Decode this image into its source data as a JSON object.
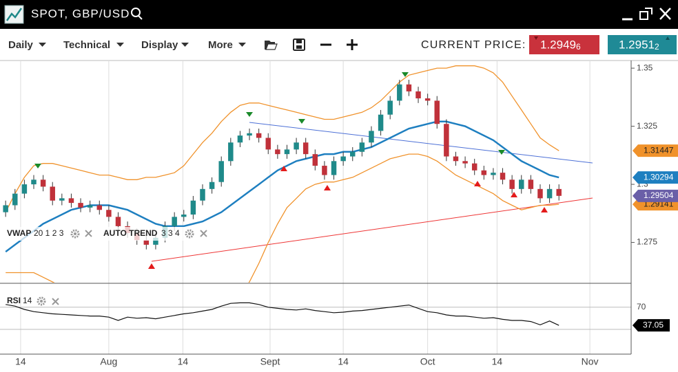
{
  "header": {
    "title": "SPOT, GBP/USD"
  },
  "toolbar": {
    "menus": [
      "Daily",
      "Technical",
      "Display",
      "More"
    ],
    "current_price_label": "CURRENT PRICE:",
    "bid": {
      "price": "1.2949",
      "pipette": "6"
    },
    "ask": {
      "price": "1.2951",
      "pipette": "2"
    }
  },
  "chart_data": [
    {
      "type": "candlestick",
      "up_color": "#1f8a8a",
      "down_color": "#c0313a",
      "open": [
        1.288,
        1.291,
        1.296,
        1.3,
        1.302,
        1.299,
        1.293,
        1.294,
        1.292,
        1.29,
        1.291,
        1.289,
        1.286,
        1.282,
        1.279,
        1.276,
        1.274,
        1.277,
        1.282,
        1.286,
        1.287,
        1.293,
        1.298,
        1.301,
        1.31,
        1.318,
        1.321,
        1.322,
        1.32,
        1.315,
        1.313,
        1.315,
        1.318,
        1.313,
        1.308,
        1.304,
        1.31,
        1.312,
        1.314,
        1.318,
        1.323,
        1.33,
        1.336,
        1.343,
        1.34,
        1.337,
        1.336,
        1.326,
        1.312,
        1.31,
        1.309,
        1.306,
        1.304,
        1.305,
        1.302,
        1.298,
        1.302,
        1.298,
        1.294,
        1.298
      ],
      "high": [
        1.293,
        1.298,
        1.302,
        1.304,
        1.304,
        1.301,
        1.296,
        1.296,
        1.294,
        1.293,
        1.293,
        1.291,
        1.288,
        1.284,
        1.281,
        1.278,
        1.279,
        1.284,
        1.288,
        1.289,
        1.295,
        1.3,
        1.303,
        1.312,
        1.32,
        1.323,
        1.324,
        1.324,
        1.322,
        1.317,
        1.317,
        1.32,
        1.32,
        1.315,
        1.31,
        1.312,
        1.314,
        1.316,
        1.32,
        1.325,
        1.332,
        1.338,
        1.345,
        1.345,
        1.342,
        1.339,
        1.338,
        1.328,
        1.314,
        1.312,
        1.311,
        1.308,
        1.307,
        1.307,
        1.304,
        1.304,
        1.304,
        1.3,
        1.3,
        1.3
      ],
      "low": [
        1.286,
        1.289,
        1.294,
        1.298,
        1.297,
        1.291,
        1.291,
        1.29,
        1.288,
        1.288,
        1.287,
        1.284,
        1.28,
        1.277,
        1.274,
        1.272,
        1.272,
        1.275,
        1.28,
        1.284,
        1.285,
        1.291,
        1.296,
        1.299,
        1.308,
        1.316,
        1.319,
        1.318,
        1.313,
        1.311,
        1.311,
        1.313,
        1.311,
        1.306,
        1.302,
        1.302,
        1.308,
        1.31,
        1.312,
        1.316,
        1.321,
        1.328,
        1.334,
        1.338,
        1.335,
        1.334,
        1.324,
        1.31,
        1.308,
        1.307,
        1.304,
        1.302,
        1.302,
        1.3,
        1.296,
        1.296,
        1.296,
        1.292,
        1.292,
        1.29304
      ],
      "close": [
        1.291,
        1.296,
        1.3,
        1.302,
        1.299,
        1.293,
        1.294,
        1.292,
        1.29,
        1.291,
        1.289,
        1.286,
        1.282,
        1.279,
        1.276,
        1.274,
        1.277,
        1.282,
        1.286,
        1.287,
        1.293,
        1.298,
        1.301,
        1.31,
        1.318,
        1.321,
        1.322,
        1.32,
        1.315,
        1.313,
        1.315,
        1.318,
        1.313,
        1.308,
        1.304,
        1.31,
        1.312,
        1.314,
        1.318,
        1.323,
        1.33,
        1.336,
        1.343,
        1.34,
        1.337,
        1.336,
        1.326,
        1.312,
        1.31,
        1.309,
        1.306,
        1.304,
        1.305,
        1.302,
        1.298,
        1.302,
        1.298,
        1.294,
        1.298,
        1.29504
      ],
      "last_color": "#6a5fa8",
      "overlays": [
        {
          "color": "#1e7fc0",
          "values": [
            1.271,
            1.274,
            1.277,
            1.28,
            1.283,
            1.285,
            1.287,
            1.289,
            1.29,
            1.291,
            1.291,
            1.291,
            1.29,
            1.289,
            1.287,
            1.285,
            1.283,
            1.282,
            1.282,
            1.282,
            1.283,
            1.284,
            1.286,
            1.288,
            1.291,
            1.294,
            1.297,
            1.3,
            1.303,
            1.306,
            1.308,
            1.31,
            1.311,
            1.312,
            1.313,
            1.313,
            1.314,
            1.314,
            1.315,
            1.316,
            1.318,
            1.32,
            1.322,
            1.324,
            1.325,
            1.326,
            1.327,
            1.327,
            1.326,
            1.325,
            1.323,
            1.321,
            1.319,
            1.316,
            1.313,
            1.31,
            1.308,
            1.306,
            1.304,
            1.30294
          ]
        },
        {
          "color": "#f0922b",
          "values": [
            1.288,
            1.296,
            1.303,
            1.308,
            1.309,
            1.309,
            1.308,
            1.307,
            1.306,
            1.305,
            1.304,
            1.304,
            1.303,
            1.302,
            1.302,
            1.303,
            1.303,
            1.304,
            1.305,
            1.308,
            1.313,
            1.318,
            1.322,
            1.327,
            1.331,
            1.334,
            1.335,
            1.335,
            1.334,
            1.333,
            1.332,
            1.331,
            1.33,
            1.329,
            1.328,
            1.328,
            1.329,
            1.33,
            1.331,
            1.333,
            1.336,
            1.34,
            1.344,
            1.347,
            1.348,
            1.349,
            1.35,
            1.35,
            1.351,
            1.351,
            1.351,
            1.35,
            1.348,
            1.344,
            1.338,
            1.332,
            1.326,
            1.32,
            1.317,
            1.31447
          ]
        },
        {
          "color": "#f0922b",
          "values": [
            1.262,
            1.262,
            1.262,
            1.262,
            1.26,
            1.258,
            1.256,
            1.254,
            1.252,
            1.25,
            1.248,
            1.247,
            1.246,
            1.246,
            1.247,
            1.248,
            1.249,
            1.25,
            1.25,
            1.249,
            1.248,
            1.247,
            1.247,
            1.248,
            1.25,
            1.253,
            1.258,
            1.266,
            1.275,
            1.283,
            1.29,
            1.294,
            1.298,
            1.3,
            1.301,
            1.301,
            1.302,
            1.303,
            1.305,
            1.307,
            1.309,
            1.311,
            1.312,
            1.313,
            1.313,
            1.312,
            1.31,
            1.307,
            1.304,
            1.302,
            1.3,
            1.298,
            1.296,
            1.293,
            1.291,
            1.289,
            1.29,
            1.291,
            1.291,
            1.29141
          ]
        }
      ],
      "indicators": [
        {
          "name": "VWAP",
          "params": "20 1 2 3"
        },
        {
          "name": "AUTO TREND",
          "params": "3 3 4"
        }
      ],
      "xlim": [
        -0.6,
        66.7
      ],
      "xticks": [
        {
          "value": 1.6,
          "label": "14"
        },
        {
          "value": 11,
          "label": "Aug"
        },
        {
          "value": 18.9,
          "label": "14"
        },
        {
          "value": 28.2,
          "label": "Sept"
        },
        {
          "value": 36,
          "label": "14"
        },
        {
          "value": 45,
          "label": "Oct"
        },
        {
          "value": 52.4,
          "label": "14"
        },
        {
          "value": 62.3,
          "label": "Nov"
        }
      ],
      "ylim": [
        1.258,
        1.3527
      ],
      "yticks": [
        1.275,
        1.3,
        1.325,
        1.35
      ]
    },
    {
      "type": "line",
      "color": "#111111",
      "indicator": {
        "name": "RSI",
        "params": "14"
      },
      "values": [
        75,
        72,
        66,
        62,
        60,
        58,
        57,
        56,
        55,
        54,
        54,
        52,
        46,
        52,
        50,
        51,
        49,
        52,
        55,
        58,
        60,
        63,
        66,
        72,
        77,
        78,
        78,
        75,
        70,
        68,
        66,
        65,
        67,
        64,
        62,
        60,
        61,
        63,
        64,
        66,
        68,
        70,
        72,
        74,
        68,
        62,
        60,
        56,
        54,
        54,
        52,
        50,
        51,
        48,
        46,
        46,
        44,
        38,
        45,
        37.05
      ],
      "ylim": [
        -14,
        111
      ],
      "yticks": [
        70
      ]
    }
  ]
}
